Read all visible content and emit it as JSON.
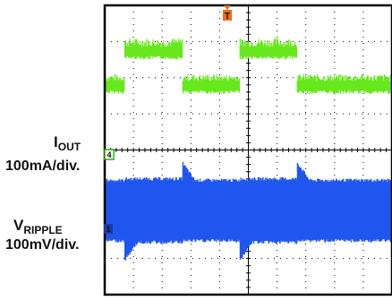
{
  "chart_data": {
    "type": "line",
    "title": "",
    "xlabel": "",
    "ylabel": "",
    "grid": true,
    "divisions": {
      "x": 10,
      "y": 8
    },
    "series": [
      {
        "name": "I_OUT",
        "label_main": "I",
        "label_sub": "OUT",
        "scale": "100mA/div.",
        "marker": "4",
        "color": "#66e81c",
        "marker_color": "#2db000",
        "low_div": 1.8,
        "high_div": 2.75,
        "steps": [
          {
            "t_div": 0.0,
            "level": "low"
          },
          {
            "t_div": 0.35,
            "level": "high"
          },
          {
            "t_div": 1.35,
            "level": "low"
          },
          {
            "t_div": 2.35,
            "level": "high"
          },
          {
            "t_div": 3.35,
            "level": "low"
          },
          {
            "t_div": 4.0,
            "level": "low"
          }
        ]
      },
      {
        "name": "V_RIPPLE",
        "label_main": "V",
        "label_sub": "RIPPLE",
        "scale": "100mV/div.",
        "marker": "1",
        "color": "#1f56f0",
        "marker_color": "#1a3aa8",
        "center_div": -1.65,
        "band_low_div": 1.0,
        "band_high_div": 0.8
      }
    ],
    "trigger_marker": {
      "label": "T",
      "color": "#f06a1a"
    }
  }
}
